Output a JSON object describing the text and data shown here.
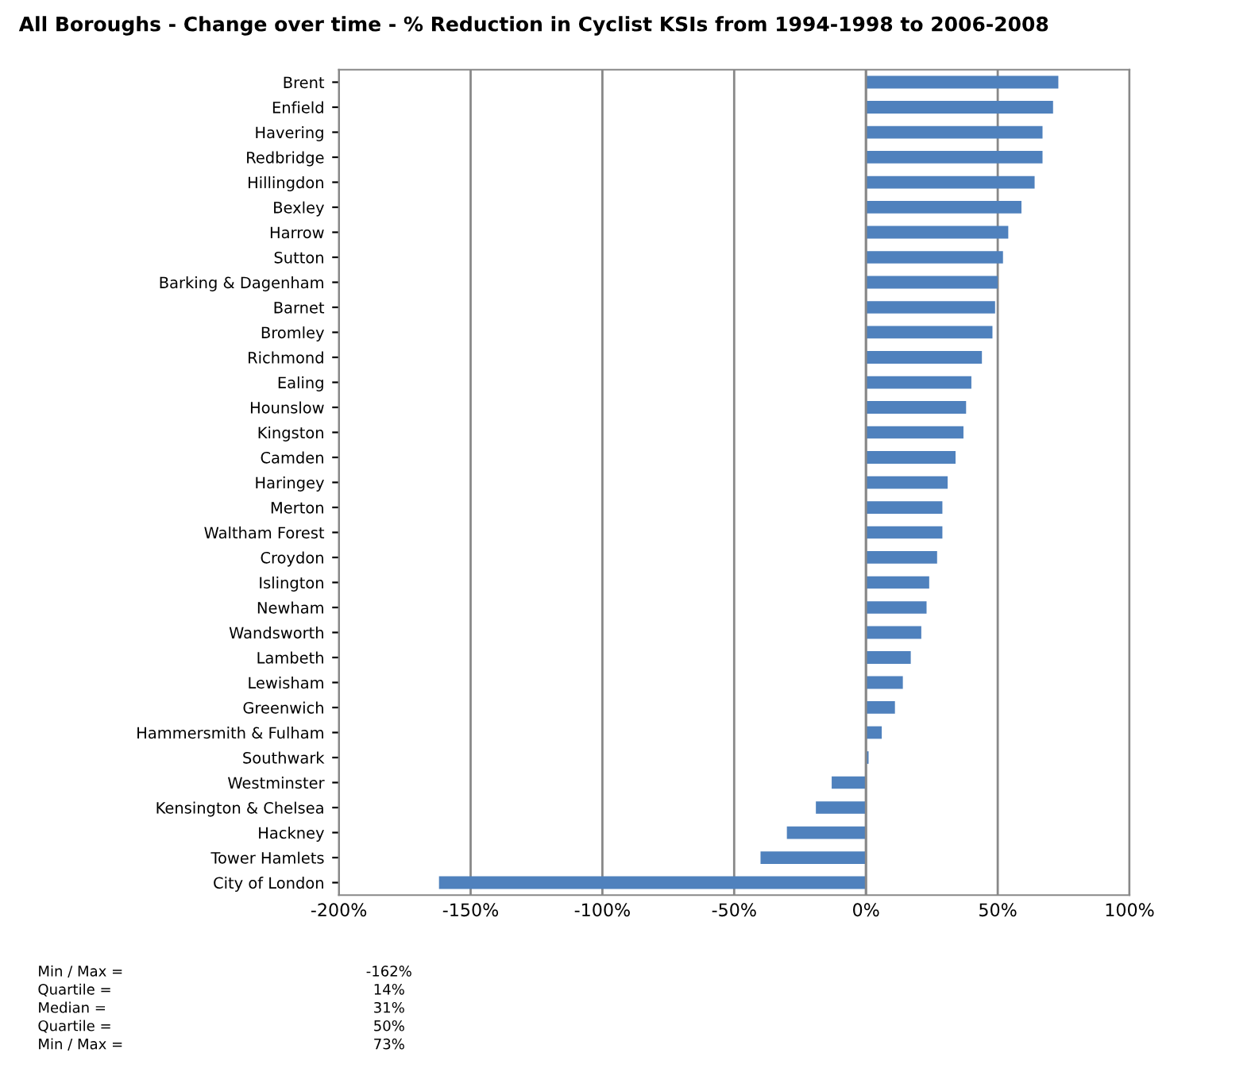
{
  "chart_data": {
    "type": "bar",
    "orientation": "horizontal",
    "title": "All Boroughs - Change over time - % Reduction in Cyclist KSIs from 1994-1998 to 2006-2008",
    "categories": [
      "Brent",
      "Enfield",
      "Havering",
      "Redbridge",
      "Hillingdon",
      "Bexley",
      "Harrow",
      "Sutton",
      "Barking & Dagenham",
      "Barnet",
      "Bromley",
      "Richmond",
      "Ealing",
      "Hounslow",
      "Kingston",
      "Camden",
      "Haringey",
      "Merton",
      "Waltham Forest",
      "Croydon",
      "Islington",
      "Newham",
      "Wandsworth",
      "Lambeth",
      "Lewisham",
      "Greenwich",
      "Hammersmith & Fulham",
      "Southwark",
      "Westminster",
      "Kensington & Chelsea",
      "Hackney",
      "Tower Hamlets",
      "City of London"
    ],
    "values": [
      73,
      71,
      67,
      67,
      64,
      59,
      54,
      52,
      50,
      49,
      48,
      44,
      40,
      38,
      37,
      34,
      31,
      29,
      29,
      27,
      24,
      23,
      21,
      17,
      14,
      11,
      6,
      1,
      -13,
      -19,
      -30,
      -40,
      -162
    ],
    "color": "#4f81bd",
    "xlim": [
      -200,
      100
    ],
    "xticks": [
      {
        "value": -200,
        "label": "-200%"
      },
      {
        "value": -150,
        "label": "-150%"
      },
      {
        "value": -100,
        "label": "-100%"
      },
      {
        "value": -50,
        "label": "-50%"
      },
      {
        "value": 0,
        "label": "0%"
      },
      {
        "value": 50,
        "label": "50%"
      },
      {
        "value": 100,
        "label": "100%"
      }
    ],
    "grid": "x",
    "annotations": [
      "Min / Max =",
      "-162%",
      "Quartile =",
      "14%",
      "Median =",
      "31%",
      "Quartile =",
      "50%",
      "Min / Max =",
      "73%"
    ]
  }
}
